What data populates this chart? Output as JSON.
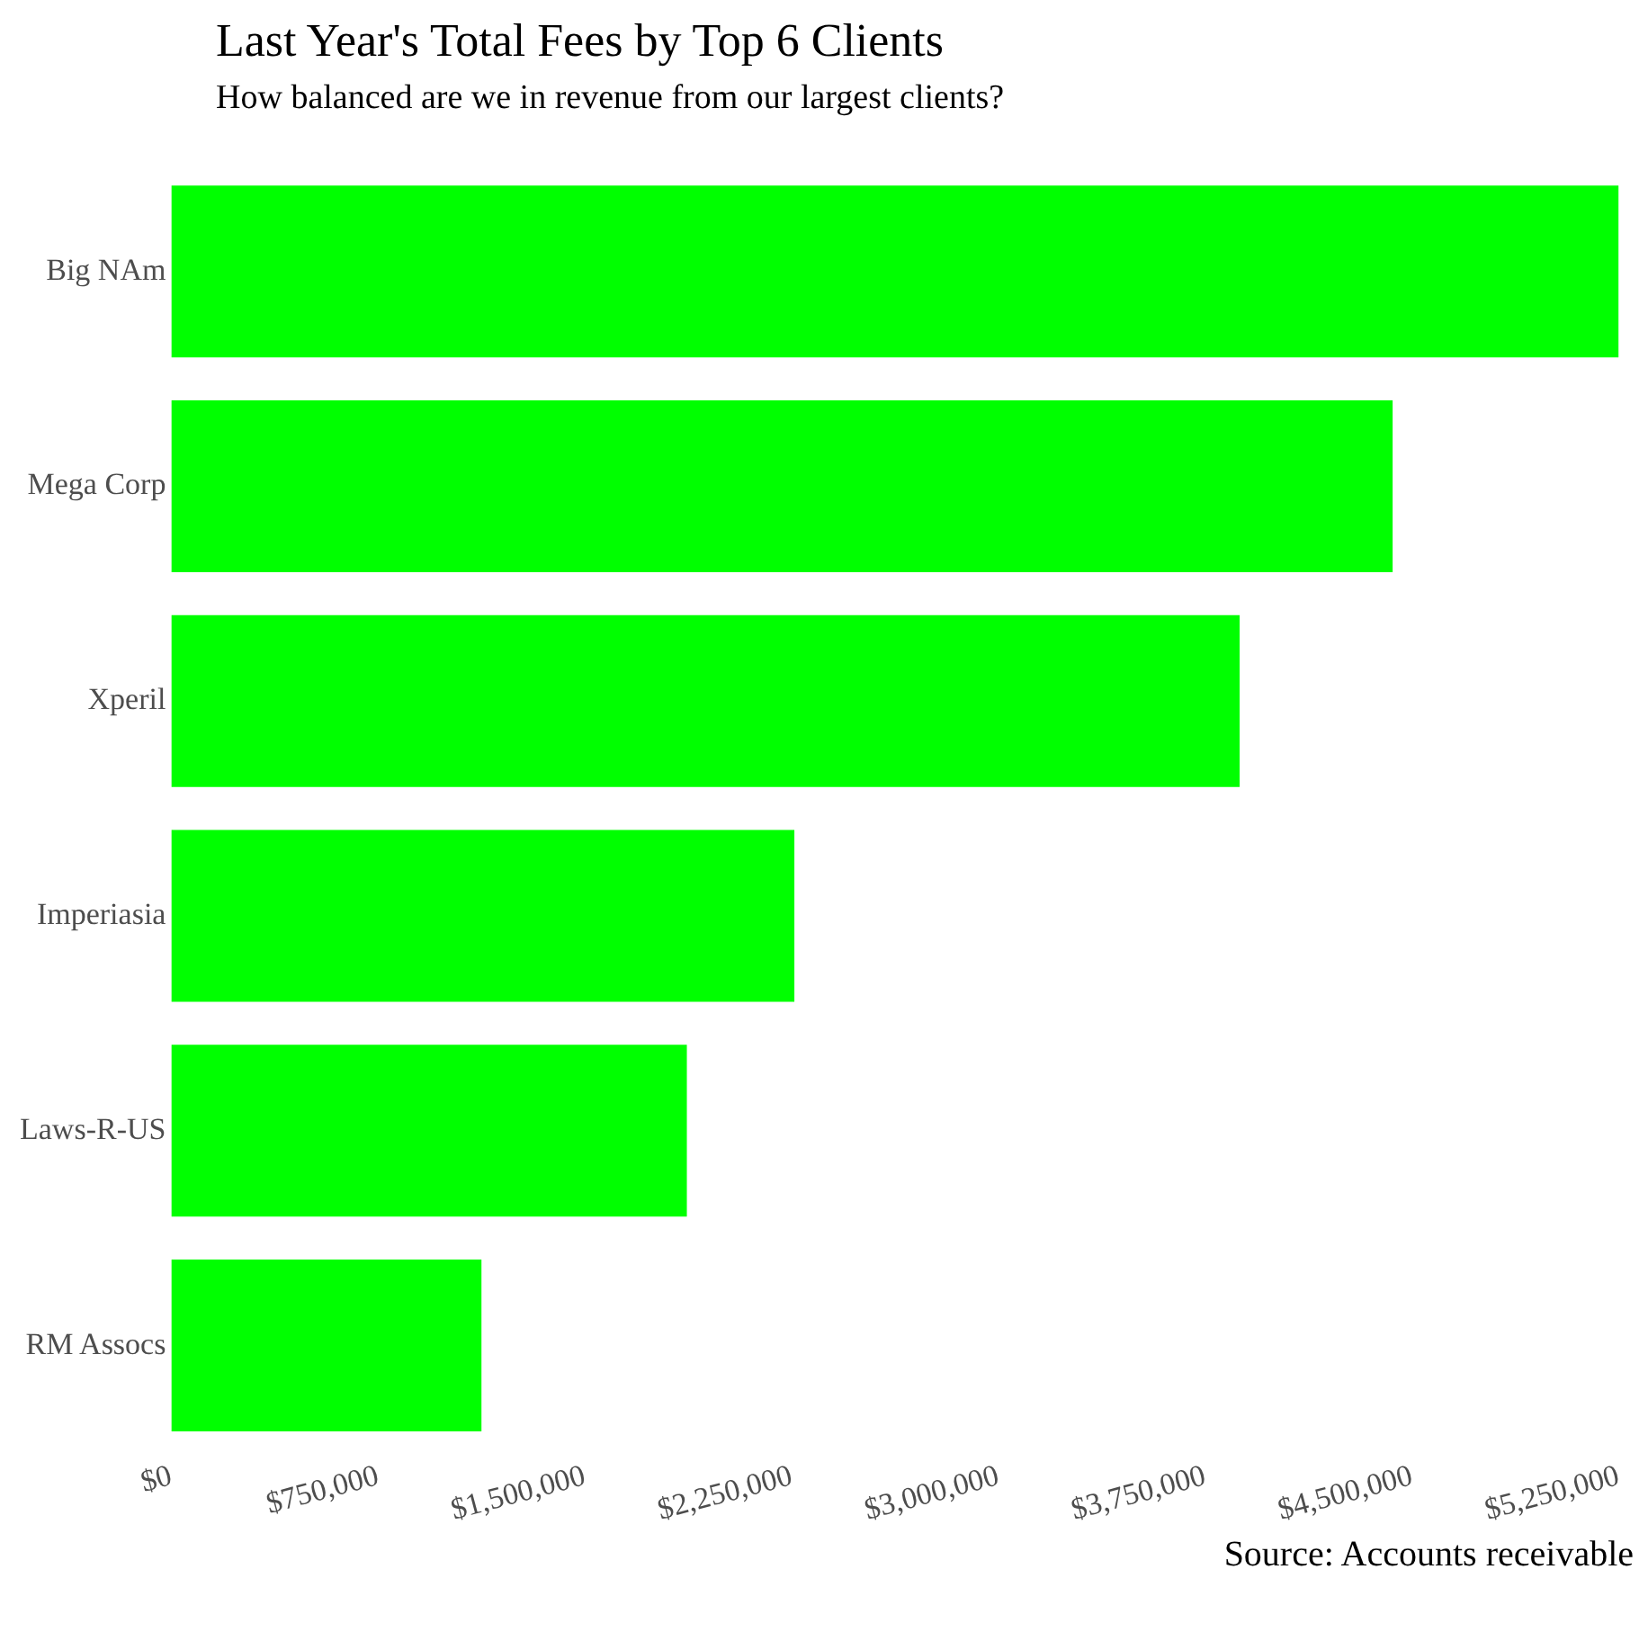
{
  "chart_data": {
    "type": "bar",
    "orientation": "horizontal",
    "title": "Last Year's Total Fees by Top 6 Clients",
    "subtitle": "How balanced are we in revenue from our largest clients?",
    "categories": [
      "Big NAm",
      "Mega Corp",
      "Xperil",
      "Imperiasia",
      "Laws-R-US",
      "RM Assocs"
    ],
    "values": [
      5250000,
      4430000,
      3875000,
      2260000,
      1870000,
      1125000
    ],
    "color": "#00ff00",
    "xlim": [
      0,
      5250000
    ],
    "xticks": [
      {
        "value": 0,
        "label": "$0"
      },
      {
        "value": 750000,
        "label": "$750,000"
      },
      {
        "value": 1500000,
        "label": "$1,500,000"
      },
      {
        "value": 2250000,
        "label": "$2,250,000"
      },
      {
        "value": 3000000,
        "label": "$3,000,000"
      },
      {
        "value": 3750000,
        "label": "$3,750,000"
      },
      {
        "value": 4500000,
        "label": "$4,500,000"
      },
      {
        "value": 5250000,
        "label": "$5,250,000"
      }
    ],
    "annotations": [
      "Source: Accounts receivable"
    ]
  }
}
